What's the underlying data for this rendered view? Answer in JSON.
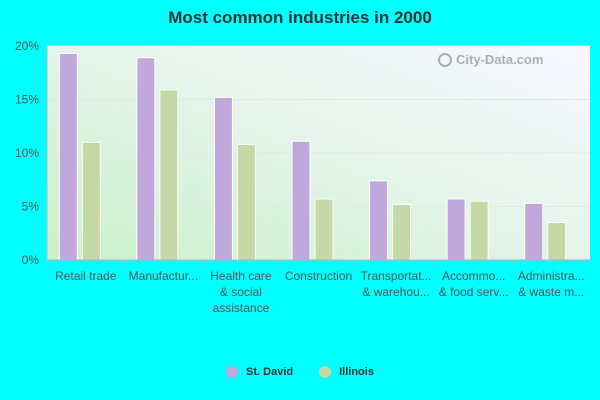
{
  "chart_data": {
    "type": "bar",
    "title": "Most common industries in 2000",
    "categories": [
      [
        "Retail trade"
      ],
      [
        "Manufactur..."
      ],
      [
        "Health care",
        "& social",
        "assistance"
      ],
      [
        "Construction"
      ],
      [
        "Transportat...",
        "& warehou..."
      ],
      [
        "Accommo...",
        "& food serv..."
      ],
      [
        "Administra...",
        "& waste m..."
      ]
    ],
    "series": [
      {
        "name": "St. David",
        "color": "#c0a8dc",
        "values": [
          19.3,
          18.9,
          15.2,
          11.1,
          7.4,
          5.7,
          5.3
        ]
      },
      {
        "name": "Illinois",
        "color": "#c5d9a6",
        "values": [
          11.0,
          15.9,
          10.8,
          5.7,
          5.2,
          5.5,
          3.5
        ]
      }
    ],
    "yticks": [
      "0%",
      "5%",
      "10%",
      "15%",
      "20%"
    ],
    "ylim": [
      0,
      20
    ],
    "grid": true,
    "legend_position": "bottom"
  },
  "watermark": "City-Data.com"
}
